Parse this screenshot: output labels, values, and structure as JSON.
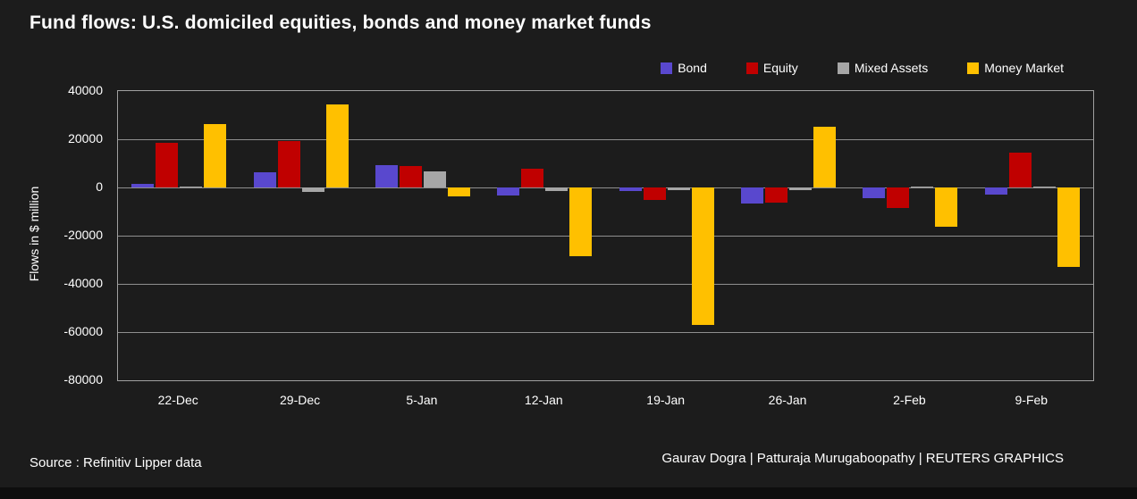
{
  "chart_data": {
    "type": "bar",
    "title": "Fund flows: U.S. domiciled equities, bonds and money market funds",
    "xlabel": "",
    "ylabel": "Flows in $ million",
    "categories": [
      "22-Dec",
      "29-Dec",
      "5-Jan",
      "12-Jan",
      "19-Jan",
      "26-Jan",
      "2-Feb",
      "9-Feb"
    ],
    "series": [
      {
        "name": "Bond",
        "color": "#5948ce",
        "values": [
          1500,
          6300,
          9400,
          -3200,
          -1400,
          -6500,
          -4300,
          -3000
        ]
      },
      {
        "name": "Equity",
        "color": "#c00000",
        "values": [
          18500,
          19300,
          8900,
          7900,
          -5100,
          -6300,
          -8400,
          14400
        ]
      },
      {
        "name": "Mixed Assets",
        "color": "#a6a6a6",
        "values": [
          400,
          -1900,
          6800,
          -1600,
          -1000,
          -1000,
          500,
          300
        ]
      },
      {
        "name": "Money Market",
        "color": "#ffc000",
        "values": [
          26200,
          34300,
          -3800,
          -28500,
          -57000,
          25300,
          -16400,
          -33100
        ]
      }
    ],
    "ylim": [
      -80000,
      40000
    ],
    "yticks": [
      40000,
      20000,
      0,
      -20000,
      -40000,
      -60000,
      -80000
    ],
    "grid": true,
    "legend_position": "top-right"
  },
  "footer": {
    "source": "Source : Refinitiv Lipper data",
    "credit": "Gaurav Dogra | Patturaja Murugaboopathy | REUTERS GRAPHICS"
  },
  "colors": {
    "background": "#1c1c1c",
    "grid": "#8f8f8f",
    "frame": "#a0a0a0",
    "text": "#ffffff",
    "bottom_strip": "#0e0e0e"
  }
}
